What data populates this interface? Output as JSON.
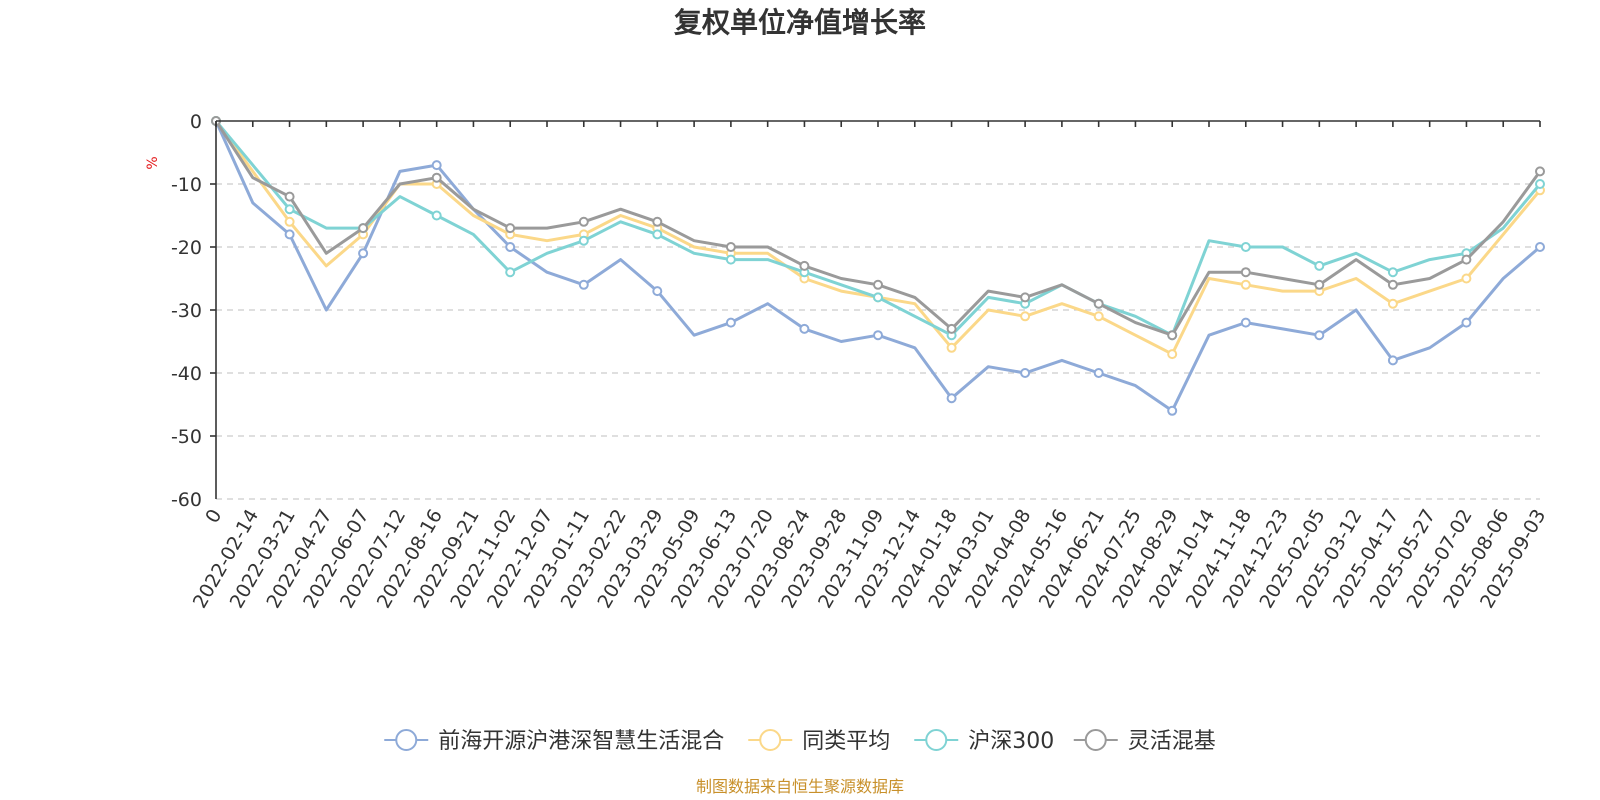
{
  "chart_data": {
    "type": "line",
    "title": "复权单位净值增长率",
    "ylabel": "%",
    "ylim": [
      -60,
      0
    ],
    "yticks": [
      0,
      -10,
      -20,
      -30,
      -40,
      -50,
      -60
    ],
    "grid": true,
    "legend_position": "bottom",
    "x_start_label": "0",
    "x": [
      "2022-02-14",
      "2022-03-21",
      "2022-04-27",
      "2022-06-07",
      "2022-07-12",
      "2022-08-16",
      "2022-09-21",
      "2022-11-02",
      "2022-12-07",
      "2023-01-11",
      "2023-02-22",
      "2023-03-29",
      "2023-05-09",
      "2023-06-13",
      "2023-07-20",
      "2023-08-24",
      "2023-09-28",
      "2023-11-09",
      "2023-12-14",
      "2024-01-18",
      "2024-03-01",
      "2024-04-08",
      "2024-05-16",
      "2024-06-21",
      "2024-07-25",
      "2024-08-29",
      "2024-10-14",
      "2024-11-18",
      "2024-12-23",
      "2025-02-05",
      "2025-03-12",
      "2025-04-17",
      "2025-05-27",
      "2025-07-02",
      "2025-08-06",
      "2025-09-03"
    ],
    "series": [
      {
        "name": "前海开源沪港深智慧生活混合",
        "color": "#8eaad8",
        "values": [
          -13,
          -18,
          -30,
          -21,
          -8,
          -7,
          -14,
          -20,
          -24,
          -26,
          -22,
          -27,
          -34,
          -32,
          -29,
          -33,
          -35,
          -34,
          -36,
          -44,
          -39,
          -40,
          -38,
          -40,
          -42,
          -46,
          -34,
          -32,
          -33,
          -34,
          -30,
          -38,
          -36,
          -32,
          -25,
          -20
        ]
      },
      {
        "name": "同类平均",
        "color": "#fbd889",
        "values": [
          -8,
          -16,
          -23,
          -18,
          -10,
          -10,
          -15,
          -18,
          -19,
          -18,
          -15,
          -17,
          -20,
          -21,
          -21,
          -25,
          -27,
          -28,
          -29,
          -36,
          -30,
          -31,
          -29,
          -31,
          -34,
          -37,
          -25,
          -26,
          -27,
          -27,
          -25,
          -29,
          -27,
          -25,
          -18,
          -11
        ]
      },
      {
        "name": "沪深300",
        "color": "#7fd3d4",
        "values": [
          -7,
          -14,
          -17,
          -17,
          -12,
          -15,
          -18,
          -24,
          -21,
          -19,
          -16,
          -18,
          -21,
          -22,
          -22,
          -24,
          -26,
          -28,
          -31,
          -34,
          -28,
          -29,
          -26,
          -29,
          -31,
          -34,
          -19,
          -20,
          -20,
          -23,
          -21,
          -24,
          -22,
          -21,
          -17,
          -10
        ]
      },
      {
        "name": "灵活混基",
        "color": "#9a9a9a",
        "values": [
          -9,
          -12,
          -21,
          -17,
          -10,
          -9,
          -14,
          -17,
          -17,
          -16,
          -14,
          -16,
          -19,
          -20,
          -20,
          -23,
          -25,
          -26,
          -28,
          -33,
          -27,
          -28,
          -26,
          -29,
          -32,
          -34,
          -24,
          -24,
          -25,
          -26,
          -22,
          -26,
          -25,
          -22,
          -16,
          -8
        ]
      }
    ]
  },
  "footer": {
    "source": "制图数据来自恒生聚源数据库"
  }
}
